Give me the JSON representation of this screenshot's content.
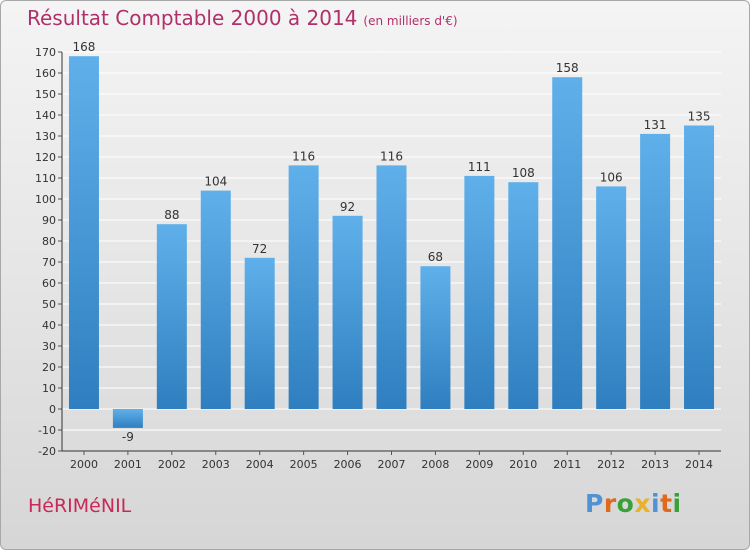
{
  "chart_data": {
    "type": "bar",
    "title": "Résultat Comptable 2000 à 2014",
    "subtitle": "(en milliers d'€)",
    "categories": [
      "2000",
      "2001",
      "2002",
      "2003",
      "2004",
      "2005",
      "2006",
      "2007",
      "2008",
      "2009",
      "2010",
      "2011",
      "2012",
      "2013",
      "2014"
    ],
    "values": [
      168,
      -9,
      88,
      104,
      72,
      116,
      92,
      116,
      68,
      111,
      108,
      158,
      106,
      131,
      135
    ],
    "ylim": [
      -20,
      170
    ],
    "yticks": [
      -20,
      -10,
      0,
      10,
      20,
      30,
      40,
      50,
      60,
      70,
      80,
      90,
      100,
      110,
      120,
      130,
      140,
      150,
      160,
      170
    ],
    "grid": true,
    "legend": "none",
    "colors": {
      "bar_top": "#5fb0ea",
      "bar_bottom": "#2f7fc0",
      "grid": "#ffffff",
      "axis": "#333333"
    }
  },
  "footer": {
    "town": "HéRIMéNIL",
    "logo": "Proxiti",
    "logo_colors": [
      "#4f93d4",
      "#e06a1c",
      "#3aa13a",
      "#e8b22a",
      "#4f93d4",
      "#e06a1c",
      "#3aa13a"
    ]
  }
}
